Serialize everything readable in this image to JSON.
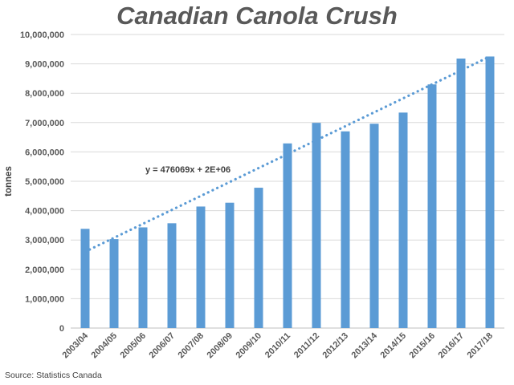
{
  "chart_data": {
    "type": "bar",
    "title": "Canadian Canola Crush",
    "ylabel": "tonnes",
    "xlabel": "",
    "categories": [
      "2003/04",
      "2004/05",
      "2005/06",
      "2006/07",
      "2007/08",
      "2008/09",
      "2009/10",
      "2010/11",
      "2011/12",
      "2012/13",
      "2013/14",
      "2014/15",
      "2015/16",
      "2016/17",
      "2017/18"
    ],
    "values": [
      3380000,
      3030000,
      3430000,
      3570000,
      4140000,
      4270000,
      4780000,
      6290000,
      6990000,
      6700000,
      6960000,
      7340000,
      8300000,
      9180000,
      9250000
    ],
    "ylim": [
      0,
      10000000
    ],
    "yticks": [
      "0",
      "1,000,000",
      "2,000,000",
      "3,000,000",
      "4,000,000",
      "5,000,000",
      "6,000,000",
      "7,000,000",
      "8,000,000",
      "9,000,000",
      "10,000,000"
    ],
    "grid": true,
    "legend": "none",
    "bar_color": "#5b9bd5",
    "trendline": {
      "equation": "y = 476069x + 2E+06",
      "start": 2600000,
      "end": 9250000,
      "color": "#5b9bd5"
    }
  },
  "source": "Source: Statistics Canada"
}
